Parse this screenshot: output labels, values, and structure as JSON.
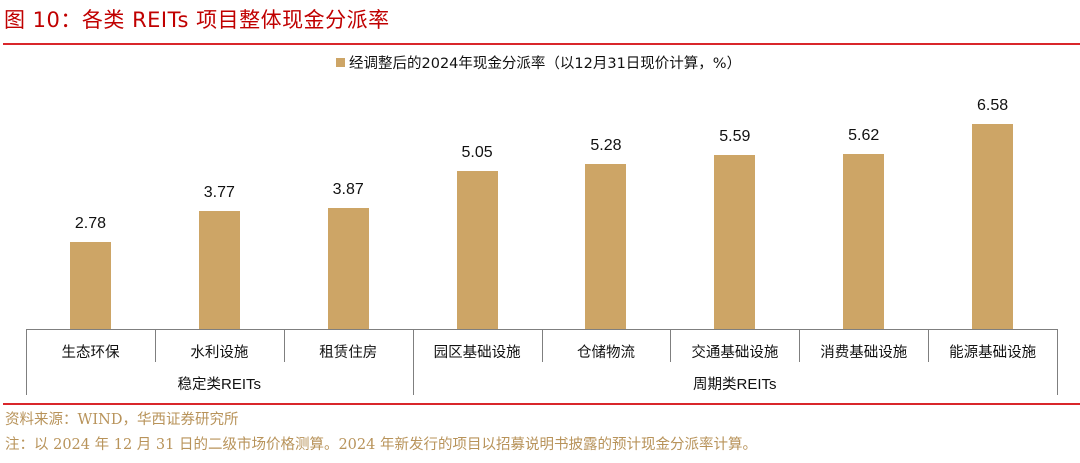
{
  "title": "图 10：各类 REITs 项目整体现金分派率",
  "legend": {
    "label": "经调整后的2024年现金分派率（以12月31日现价计算，%）",
    "color": "#cda566"
  },
  "source": "资料来源：WIND，华西证券研究所",
  "note": "注：以 2024 年 12 月 31 日的二级市场价格测算。2024 年新发行的项目以招募说明书披露的预计现金分派率计算。",
  "groups": [
    {
      "label": "稳定类REITs",
      "categories": [
        "生态环保",
        "水利设施",
        "租赁住房"
      ]
    },
    {
      "label": "周期类REITs",
      "categories": [
        "园区基础设施",
        "仓储物流",
        "交通基础设施",
        "消费基础设施",
        "能源基础设施"
      ]
    }
  ],
  "chart_data": {
    "type": "bar",
    "title": "图 10：各类 REITs 项目整体现金分派率",
    "categories": [
      "生态环保",
      "水利设施",
      "租赁住房",
      "园区基础设施",
      "仓储物流",
      "交通基础设施",
      "消费基础设施",
      "能源基础设施"
    ],
    "category_groups": [
      {
        "name": "稳定类REITs",
        "members": [
          "生态环保",
          "水利设施",
          "租赁住房"
        ]
      },
      {
        "name": "周期类REITs",
        "members": [
          "园区基础设施",
          "仓储物流",
          "交通基础设施",
          "消费基础设施",
          "能源基础设施"
        ]
      }
    ],
    "series": [
      {
        "name": "经调整后的2024年现金分派率（以12月31日现价计算，%）",
        "color": "#cda566",
        "values": [
          2.78,
          3.77,
          3.87,
          5.05,
          5.28,
          5.59,
          5.62,
          6.58
        ]
      }
    ],
    "xlabel": "",
    "ylabel": "",
    "ylim": [
      0,
      7
    ],
    "grid": false,
    "legend_position": "top",
    "data_labels": true
  }
}
